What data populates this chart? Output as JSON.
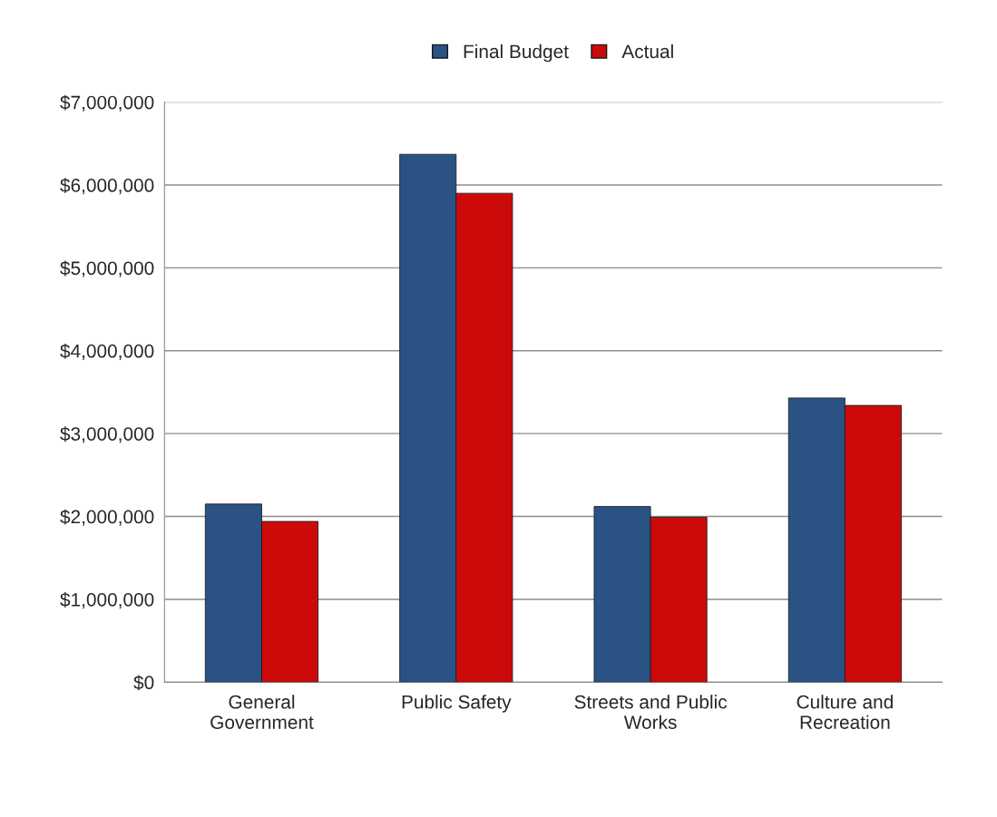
{
  "chart_data": {
    "type": "bar",
    "categories": [
      "General\nGovernment",
      "Public Safety",
      "Streets and Public\nWorks",
      "Culture and\nRecreation"
    ],
    "series": [
      {
        "name": "Final Budget",
        "color": "#2b5285",
        "values": [
          2150000,
          6370000,
          2120000,
          3430000
        ]
      },
      {
        "name": "Actual",
        "color": "#cc0a0a",
        "values": [
          1940000,
          5900000,
          1990000,
          3340000
        ]
      }
    ],
    "ylim": [
      0,
      7000000
    ],
    "yticks": [
      {
        "value": 0,
        "label": "$0"
      },
      {
        "value": 1000000,
        "label": "$1,000,000"
      },
      {
        "value": 2000000,
        "label": "$2,000,000"
      },
      {
        "value": 3000000,
        "label": "$3,000,000"
      },
      {
        "value": 4000000,
        "label": "$4,000,000"
      },
      {
        "value": 5000000,
        "label": "$5,000,000"
      },
      {
        "value": 6000000,
        "label": "$6,000,000"
      },
      {
        "value": 7000000,
        "label": "$7,000,000"
      }
    ],
    "grid": "y",
    "legend": "top"
  }
}
